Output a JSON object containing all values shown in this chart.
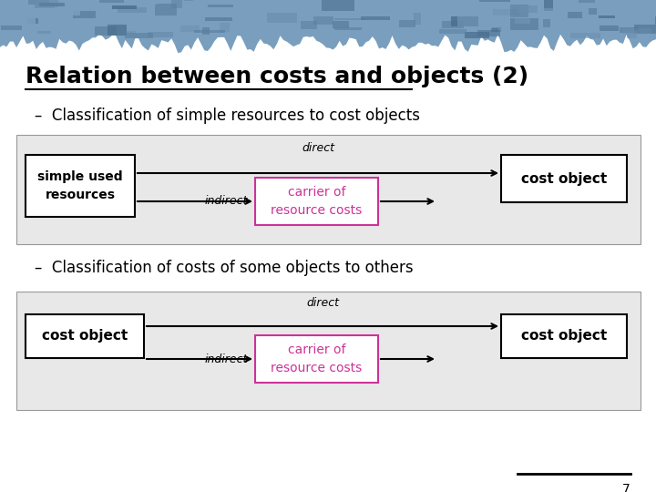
{
  "title": "Relation between costs and objects (2)",
  "title_fontsize": 18,
  "title_color": "#000000",
  "background_color": "#ffffff",
  "bullet1": "Classification of simple resources to cost objects",
  "bullet2": "Classification of costs of some objects to others",
  "bullet_fontsize": 12,
  "diagram_bg_color": "#e8e8e8",
  "carrier_edge_color": "#cc3399",
  "carrier_text_color": "#cc3399",
  "arrow_color": "#000000",
  "direct_label": "direct",
  "indirect_label": "indirect",
  "carrier_label": "carrier of\nresource costs",
  "box1_label_diag1": "simple used\nresources",
  "box2_label_diag1": "cost object",
  "box1_label_diag2": "cost object",
  "box2_label_diag2": "cost object",
  "page_number": "7",
  "header_color": "#7a9fbe",
  "header_dark_color": "#5a7f9e"
}
